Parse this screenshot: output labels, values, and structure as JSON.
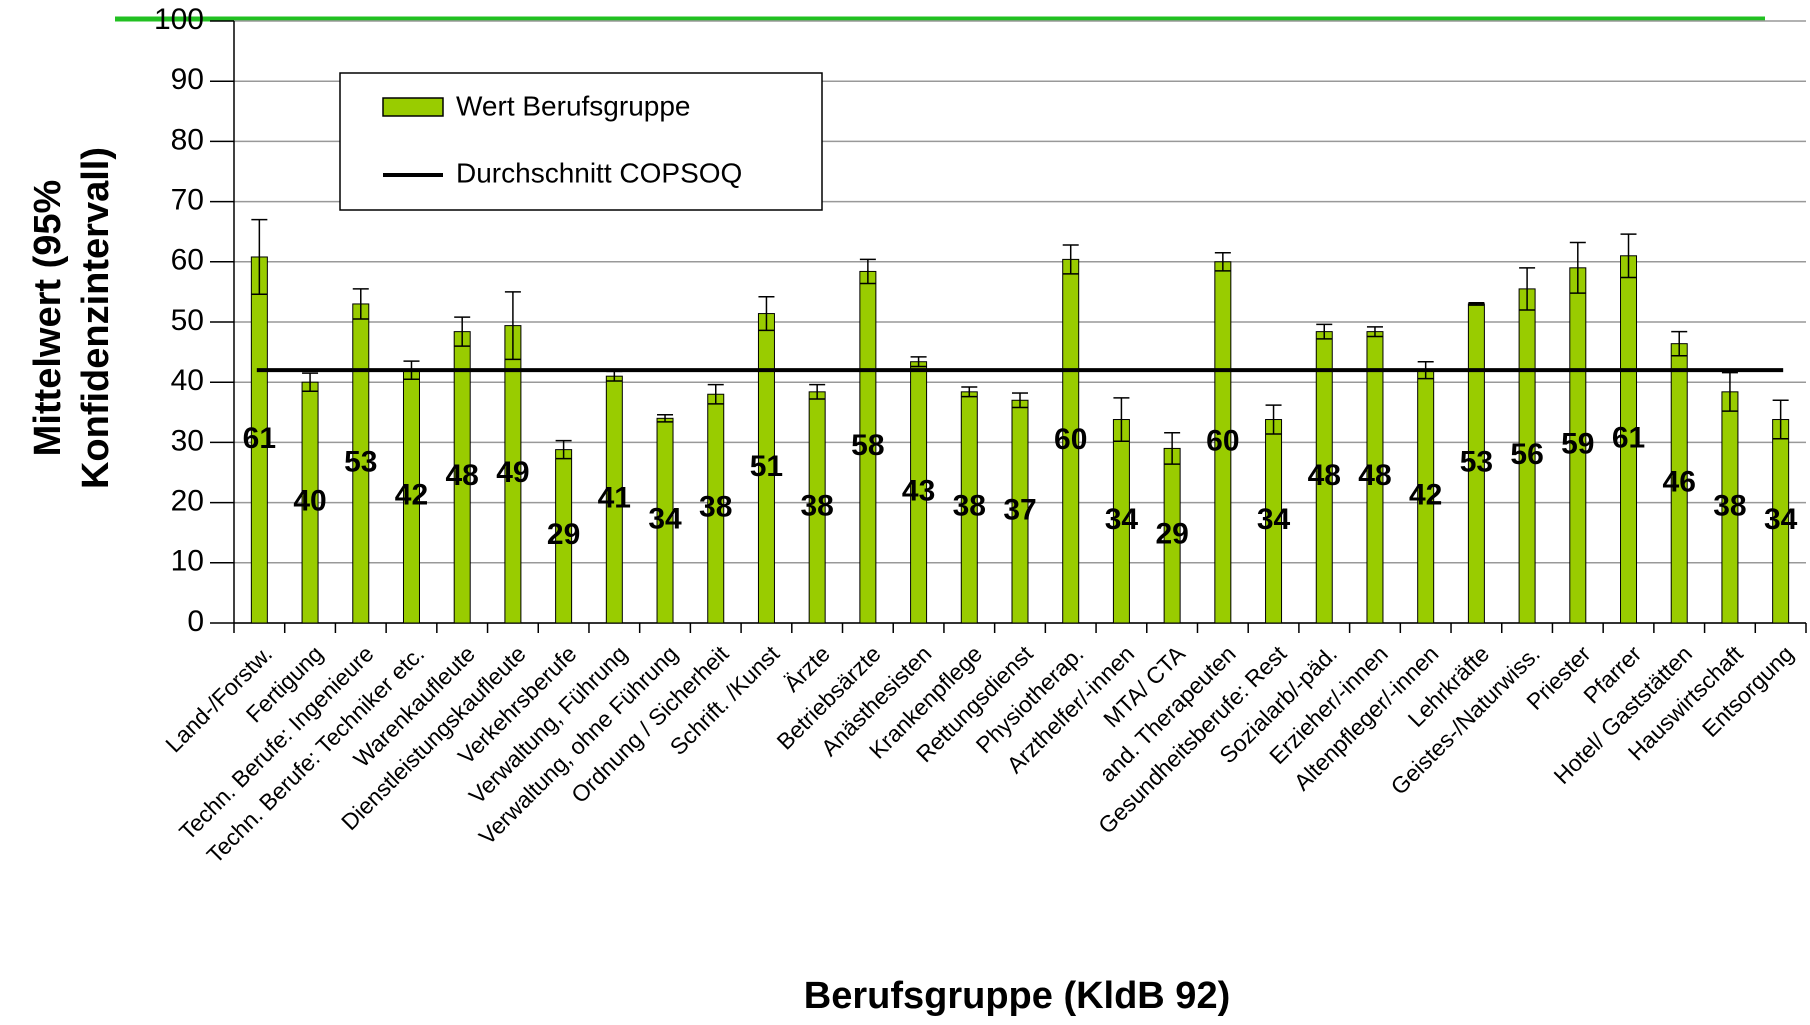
{
  "chart_data": {
    "type": "bar",
    "x_label": "Berufsgruppe (KldB 92)",
    "y_label": [
      "Mittelwert (95%",
      "Konfidenzintervall)"
    ],
    "categories": [
      "Land-/Forstw.",
      "Fertigung",
      "Techn. Berufe: Ingenieure",
      "Techn. Berufe: Techniker etc.",
      "Warenkaufleute",
      "Dienstleistungskaufleute",
      "Verkehrsberufe",
      "Verwaltung, Führung",
      "Verwaltung, ohne Führung",
      "Ordnung / Sicherheit",
      "Schrift. /Kunst",
      "Ärzte",
      "Betriebsärzte",
      "Anästhesisten",
      "Krankenpflege",
      "Rettungsdienst",
      "Physiotherap.",
      "Arzthelfer/-innen",
      "MTA/ CTA",
      "and. Therapeuten",
      "Gesundheitsberufe: Rest",
      "Sozialarb/-päd.",
      "Erzieher/-innen",
      "Altenpfleger/-innen",
      "Lehrkräfte",
      "Geistes-/Naturwiss.",
      "Priester",
      "Pfarrer",
      "Hotel/ Gaststätten",
      "Hauswirtschaft",
      "Entsorgung"
    ],
    "series": [
      {
        "name": "Wert Berufsgruppe",
        "color": "#99cc00",
        "values": [
          60.8,
          40,
          53,
          42,
          48.4,
          49.4,
          28.8,
          41,
          34,
          38,
          51.4,
          38.4,
          58.4,
          43.4,
          38.4,
          37,
          60.4,
          33.8,
          29,
          60,
          33.8,
          48.4,
          48.4,
          42,
          53,
          55.5,
          59,
          61,
          46.4,
          38.4,
          33.8
        ],
        "value_labels": [
          "61",
          "40",
          "53",
          "42",
          "48",
          "49",
          "29",
          "41",
          "34",
          "38",
          "51",
          "38",
          "58",
          "43",
          "38",
          "37",
          "60",
          "34",
          "29",
          "60",
          "34",
          "48",
          "48",
          "42",
          "53",
          "56",
          "59",
          "61",
          "46",
          "38",
          "34"
        ],
        "errors": [
          6.2,
          1.5,
          2.5,
          1.5,
          2.4,
          5.6,
          1.5,
          0.8,
          0.6,
          1.6,
          2.8,
          1.2,
          2,
          0.8,
          0.8,
          1.2,
          2.4,
          3.6,
          2.6,
          1.5,
          2.4,
          1.2,
          0.8,
          1.4,
          0.2,
          3.5,
          4.2,
          3.6,
          2,
          3.2,
          3.2
        ]
      }
    ],
    "reference_line": {
      "name": "Durchschnitt COPSOQ",
      "value": 42,
      "color": "#000000"
    },
    "ylim": [
      0,
      100
    ],
    "yticks": [
      0,
      10,
      20,
      30,
      40,
      50,
      60,
      70,
      80,
      90,
      100
    ],
    "grid": true
  }
}
